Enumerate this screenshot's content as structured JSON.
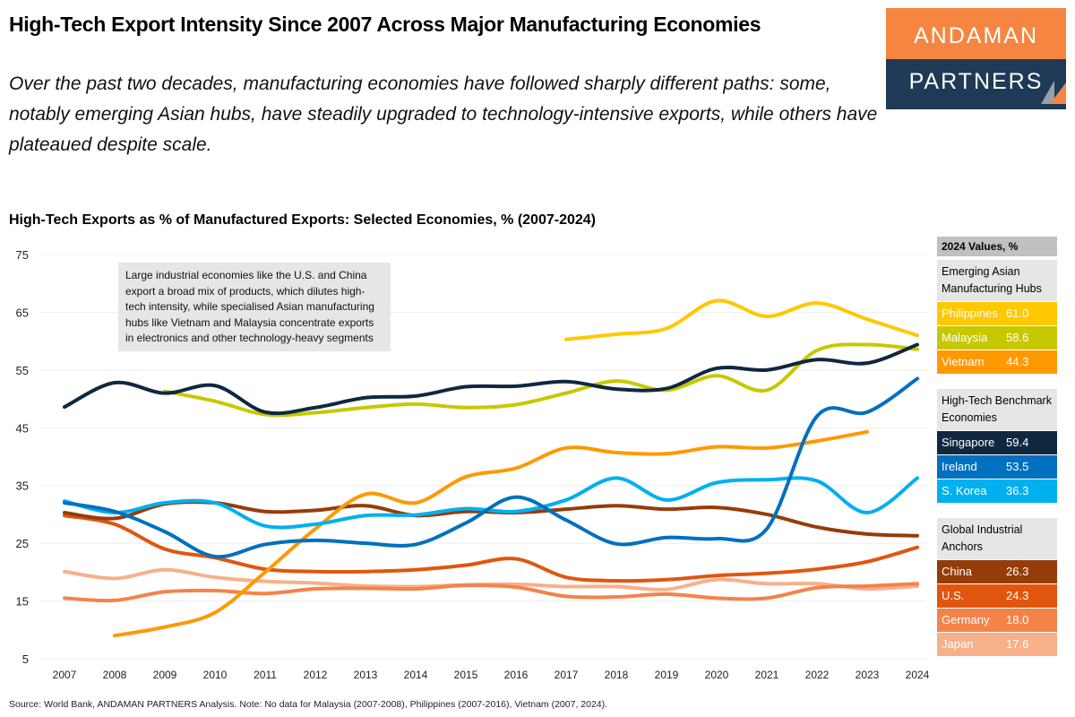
{
  "title": "High-Tech Export Intensity Since 2007 Across Major Manufacturing Economies",
  "subtitle": "Over the past two decades, manufacturing economies have followed sharply different paths: some, notably emerging Asian hubs, have steadily upgraded to technology-intensive exports, while others have plateaued despite scale.",
  "logo": {
    "line1": "ANDAMAN",
    "line2": "PARTNERS",
    "colors": {
      "top": "#F58540",
      "bottom": "#1E3A56"
    }
  },
  "annotation": "Large industrial economies like the U.S. and China export a broad mix of products, which dilutes high-tech intensity, while specialised Asian manufacturing hubs like Vietnam and Malaysia concentrate exports in electronics and other technology-heavy segments",
  "legend": {
    "header": "2024 Values, %",
    "groups": [
      {
        "label": "Emerging Asian Manufacturing Hubs",
        "items": [
          {
            "name": "Philippines",
            "value": "61.0",
            "color": "#FFC800"
          },
          {
            "name": "Malaysia",
            "value": "58.6",
            "color": "#C8C800"
          },
          {
            "name": "Vietnam",
            "value": "44.3",
            "color": "#FF9900"
          }
        ]
      },
      {
        "label": "High-Tech Benchmark Economies",
        "items": [
          {
            "name": "Singapore",
            "value": "59.4",
            "color": "#0F2840"
          },
          {
            "name": "Ireland",
            "value": "53.5",
            "color": "#0070C0"
          },
          {
            "name": "S. Korea",
            "value": "36.3",
            "color": "#00B0F0"
          }
        ]
      },
      {
        "label": "Global Industrial Anchors",
        "items": [
          {
            "name": "China",
            "value": "26.3",
            "color": "#963C0A"
          },
          {
            "name": "U.S.",
            "value": "24.3",
            "color": "#E0560F"
          },
          {
            "name": "Germany",
            "value": "18.0",
            "color": "#F4834A"
          },
          {
            "name": "Japan",
            "value": "17.6",
            "color": "#F7B08A"
          }
        ]
      }
    ]
  },
  "source": "Source: World Bank, ANDAMAN PARTNERS Analysis. Note: No data for Malaysia (2007-2008), Philippines (2007-2016), Vietnam (2007, 2024).",
  "chart_data": {
    "type": "line",
    "title": "High-Tech Exports as % of Manufactured Exports: Selected Economies, % (2007-2024)",
    "x": [
      2007,
      2008,
      2009,
      2010,
      2011,
      2012,
      2013,
      2014,
      2015,
      2016,
      2017,
      2018,
      2019,
      2020,
      2021,
      2022,
      2023,
      2024
    ],
    "ylim": [
      5,
      75
    ],
    "yticks": [
      5,
      15,
      25,
      35,
      45,
      55,
      65,
      75
    ],
    "grid": true,
    "smooth": true,
    "series": [
      {
        "name": "Philippines",
        "color": "#FFC800",
        "values": [
          null,
          null,
          null,
          null,
          null,
          null,
          null,
          null,
          null,
          null,
          60.3,
          61.2,
          62.2,
          67.0,
          64.3,
          66.6,
          63.8,
          61.0
        ]
      },
      {
        "name": "Malaysia",
        "color": "#C8C800",
        "values": [
          null,
          null,
          51.3,
          49.6,
          47.3,
          47.6,
          48.5,
          49.1,
          48.5,
          49.0,
          51.0,
          53.1,
          51.5,
          54.0,
          51.5,
          58.4,
          59.4,
          58.6
        ]
      },
      {
        "name": "Vietnam",
        "color": "#FF9900",
        "values": [
          null,
          9.0,
          10.5,
          13.0,
          20.0,
          27.5,
          33.5,
          32.0,
          36.5,
          38.0,
          41.5,
          40.7,
          40.5,
          41.7,
          41.5,
          42.7,
          44.3,
          null
        ]
      },
      {
        "name": "Singapore",
        "color": "#0F2840",
        "values": [
          48.6,
          52.8,
          51.0,
          52.3,
          47.7,
          48.5,
          50.2,
          50.5,
          52.1,
          52.2,
          53.0,
          51.7,
          51.8,
          55.3,
          55.0,
          56.8,
          56.2,
          59.4
        ]
      },
      {
        "name": "Ireland",
        "color": "#0070C0",
        "values": [
          32.0,
          30.5,
          27.0,
          22.7,
          24.8,
          25.5,
          25.0,
          24.8,
          28.5,
          33.0,
          29.0,
          24.9,
          26.0,
          25.8,
          27.5,
          47.0,
          47.7,
          53.5
        ]
      },
      {
        "name": "S. Korea",
        "color": "#00B0F0",
        "values": [
          32.3,
          30.3,
          32.0,
          32.0,
          28.0,
          28.3,
          29.8,
          29.9,
          31.0,
          30.5,
          32.5,
          36.3,
          32.5,
          35.5,
          36.0,
          35.8,
          30.3,
          36.3
        ]
      },
      {
        "name": "China",
        "color": "#963C0A",
        "values": [
          30.3,
          29.3,
          31.8,
          32.0,
          30.5,
          30.7,
          31.5,
          29.8,
          30.5,
          30.3,
          30.9,
          31.5,
          30.9,
          31.2,
          30.0,
          27.8,
          26.6,
          26.3
        ]
      },
      {
        "name": "U.S.",
        "color": "#E0560F",
        "values": [
          29.8,
          28.3,
          24.0,
          22.5,
          20.5,
          20.1,
          20.1,
          20.4,
          21.2,
          22.3,
          19.1,
          18.5,
          18.7,
          19.4,
          19.8,
          20.5,
          21.8,
          24.3
        ]
      },
      {
        "name": "Germany",
        "color": "#F4834A",
        "values": [
          15.5,
          15.1,
          16.6,
          16.8,
          16.3,
          17.1,
          17.2,
          17.1,
          17.7,
          17.4,
          15.8,
          15.7,
          16.2,
          15.5,
          15.5,
          17.3,
          17.6,
          18.0
        ]
      },
      {
        "name": "Japan",
        "color": "#F7B08A",
        "values": [
          20.1,
          18.9,
          20.4,
          19.1,
          18.4,
          18.1,
          17.6,
          17.5,
          17.8,
          17.9,
          17.5,
          17.5,
          17.0,
          18.7,
          18.0,
          18.0,
          17.1,
          17.6
        ]
      }
    ]
  }
}
